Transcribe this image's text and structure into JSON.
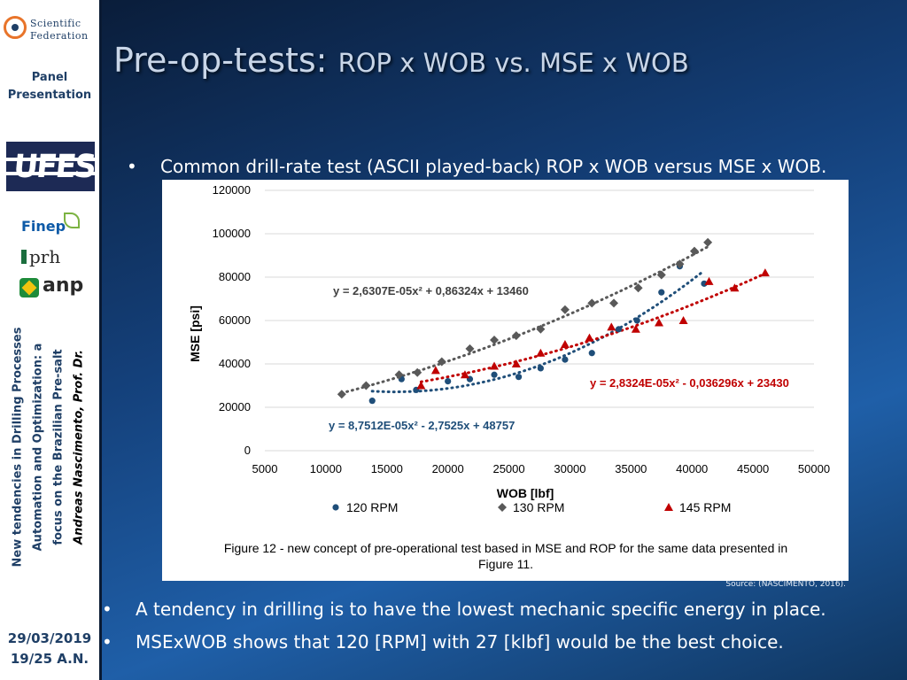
{
  "sidebar": {
    "logo_line1": "Scientific",
    "logo_line2": "Federation",
    "title_line1": "Panel",
    "title_line2": "Presentation",
    "ufes_logo": "UFES",
    "finep_logo": "Finep",
    "prh_logo": "prh",
    "anp_logo": "anp",
    "vertical_line1": "New tendencies in Drilling Processes",
    "vertical_line2": "Automation and Optimization: a",
    "vertical_line3": "focus on the Brazilian Pre-salt",
    "vertical_author": "Andreas Nascimento, Prof. Dr.",
    "date": "29/03/2019",
    "page": "19/25  A.N."
  },
  "header": {
    "title_main": "Pre-op-tests: ",
    "title_sub": "ROP x WOB vs. MSE x WOB"
  },
  "bullets": {
    "top": "Common drill-rate test (ASCII played-back) ROP x WOB versus MSE x WOB.",
    "bottom1": "A tendency in drilling is to have the lowest mechanic specific energy in place.",
    "bottom2": "MSExWOB shows that 120 [RPM] with 27 [klbf] would be the best choice.",
    "marker": "•"
  },
  "source": "Source: (NASCIMENTO, 2016).",
  "colors": {
    "rpm120": "#1f4e79",
    "rpm130": "#595959",
    "rpm145": "#c00000"
  },
  "chart_data": {
    "type": "scatter",
    "xlabel": "WOB [lbf]",
    "ylabel": "MSE [psi]",
    "xlim": [
      5000,
      50000
    ],
    "ylim": [
      0,
      120000
    ],
    "xticks": [
      5000,
      10000,
      15000,
      20000,
      25000,
      30000,
      35000,
      40000,
      45000,
      50000
    ],
    "yticks": [
      0,
      20000,
      40000,
      60000,
      80000,
      100000,
      120000
    ],
    "grid": "horizontal",
    "legend_position": "bottom",
    "caption": "Figure 12 - new concept of pre-operational test based in MSE and ROP for the same data presented in Figure 11.",
    "series": [
      {
        "name": "120 RPM",
        "marker": "circle",
        "color": "#1f4e79",
        "x": [
          13800,
          16200,
          17400,
          20000,
          21800,
          23800,
          25800,
          27600,
          29600,
          31800,
          34000,
          35500,
          37500,
          39000,
          41000
        ],
        "y": [
          23000,
          33000,
          28000,
          32000,
          33000,
          35000,
          34000,
          38000,
          42000,
          45000,
          56000,
          60000,
          73000,
          85000,
          77000
        ],
        "trendline": {
          "a": 8.7512e-05,
          "b": -2.7525,
          "c": 48757,
          "x_range": [
            13800,
            41000
          ]
        },
        "equation": "y = 8,7512E-05x² - 2,7525x + 48757"
      },
      {
        "name": "130 RPM",
        "marker": "diamond",
        "color": "#595959",
        "x": [
          11300,
          13300,
          16000,
          17500,
          19500,
          21800,
          23800,
          25600,
          27600,
          29600,
          31800,
          33600,
          35600,
          37500,
          39000,
          40200,
          41300
        ],
        "y": [
          26000,
          30000,
          35000,
          36000,
          41000,
          47000,
          51000,
          53000,
          56000,
          65000,
          68000,
          68000,
          75000,
          81000,
          86000,
          92000,
          96000
        ],
        "trendline": {
          "a": 2.6307e-05,
          "b": 0.86324,
          "c": 13460,
          "x_range": [
            11300,
            41300
          ]
        },
        "equation": "y = 2,6307E-05x² + 0,86324x + 13460"
      },
      {
        "name": "145 RPM",
        "marker": "triangle",
        "color": "#c00000",
        "x": [
          17800,
          19000,
          21400,
          23800,
          25600,
          27600,
          29600,
          31600,
          33400,
          35400,
          37300,
          39300,
          41400,
          43500,
          46000
        ],
        "y": [
          30000,
          37000,
          35000,
          39000,
          40000,
          45000,
          49000,
          52000,
          57000,
          56000,
          59000,
          60000,
          78000,
          75000,
          82000
        ],
        "trendline": {
          "a": 2.8324e-05,
          "b": -0.036296,
          "c": 23430,
          "x_range": [
            17800,
            46000
          ]
        },
        "equation": "y = 2,8324E-05x² - 0,036296x + 23430"
      }
    ]
  }
}
